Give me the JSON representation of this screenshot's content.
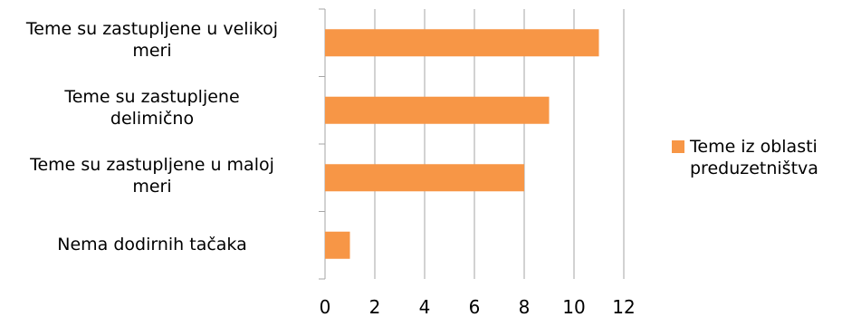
{
  "chart_data": {
    "type": "bar",
    "orientation": "horizontal",
    "categories": [
      "Teme su  zastupljene u velikoj\nmeri",
      "Teme su  zastupljene\ndelimično",
      "Teme su  zastupljene u maloj\nmeri",
      "Nema dodirnih tačaka"
    ],
    "series": [
      {
        "name": "Teme iz oblasti\npreduzetništva",
        "values": [
          11,
          9,
          8,
          1
        ]
      }
    ],
    "xlim": [
      0,
      12
    ],
    "xticks": [
      "0",
      "2",
      "4",
      "6",
      "8",
      "10",
      "12"
    ],
    "grid": true,
    "legend_position": "right",
    "colors": {
      "bar": "#F79646",
      "grid": "#A6A6A6",
      "axis": "#A6A6A6"
    },
    "title": "",
    "xlabel": "",
    "ylabel": ""
  }
}
